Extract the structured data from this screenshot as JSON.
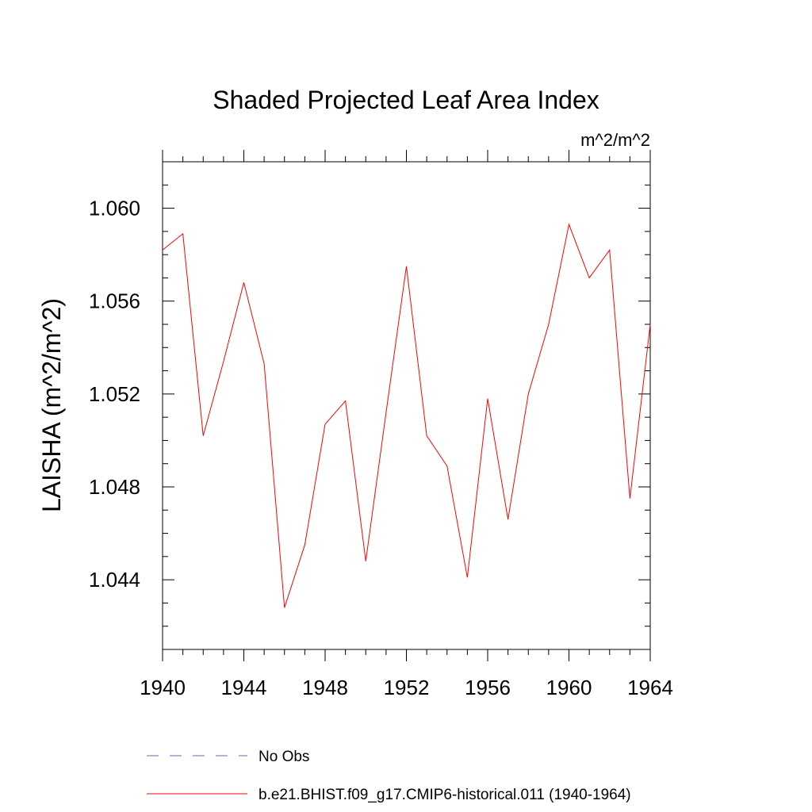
{
  "chart_data": {
    "type": "line",
    "title": "Shaded Projected Leaf Area Index",
    "units_label": "m^2/m^2",
    "ylabel": "LAISHA  (m^2/m^2)",
    "xlabel": "",
    "xlim": [
      1940,
      1964
    ],
    "ylim": [
      1.041,
      1.062
    ],
    "x_ticks": [
      "1940",
      "1944",
      "1948",
      "1952",
      "1956",
      "1960",
      "1964"
    ],
    "y_ticks": [
      "1.044",
      "1.048",
      "1.052",
      "1.056",
      "1.060"
    ],
    "x": [
      1940,
      1941,
      1942,
      1943,
      1944,
      1945,
      1946,
      1947,
      1948,
      1949,
      1950,
      1951,
      1952,
      1953,
      1954,
      1955,
      1956,
      1957,
      1958,
      1959,
      1960,
      1961,
      1962,
      1963,
      1964
    ],
    "series": [
      {
        "name": "b.e21.BHIST.f09_g17.CMIP6-historical.011 (1940-1964)",
        "color": "#ff0000",
        "values": [
          1.0582,
          1.0589,
          1.0502,
          1.0534,
          1.0568,
          1.0533,
          1.0428,
          1.0455,
          1.0507,
          1.0517,
          1.0448,
          1.0512,
          1.0575,
          1.0502,
          1.0489,
          1.0441,
          1.0518,
          1.0466,
          1.052,
          1.055,
          1.0593,
          1.057,
          1.0582,
          1.0475,
          1.055
        ]
      }
    ],
    "legend": [
      {
        "label": "No Obs",
        "color": "#6666bb",
        "style": "dashed"
      },
      {
        "label": "b.e21.BHIST.f09_g17.CMIP6-historical.011 (1940-1964)",
        "color": "#ff0000",
        "style": "solid"
      }
    ],
    "legend_position": "bottom",
    "grid": false
  }
}
